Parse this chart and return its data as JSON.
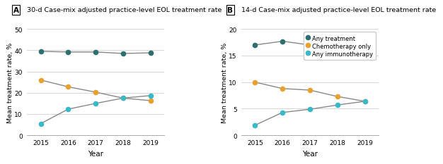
{
  "years": [
    2015,
    2016,
    2017,
    2018,
    2019
  ],
  "panel_A": {
    "title": "30-d Case-mix adjusted practice-level EOL treatment rate",
    "ylabel": "Mean treatment rate, %",
    "xlabel": "Year",
    "ylim": [
      0,
      50
    ],
    "yticks": [
      0,
      10,
      20,
      30,
      40,
      50
    ],
    "any_treatment": [
      39.5,
      39.2,
      39.2,
      38.5,
      38.8
    ],
    "chemo_only": [
      26.0,
      22.8,
      20.3,
      17.5,
      16.3
    ],
    "immunotherapy": [
      5.5,
      12.3,
      15.0,
      17.5,
      18.7
    ]
  },
  "panel_B": {
    "title": "14-d Case-mix adjusted practice-level EOL treatment rate",
    "ylabel": "Mean treatment rate, %",
    "xlabel": "Year",
    "ylim": [
      0,
      20
    ],
    "yticks": [
      0,
      5,
      10,
      15,
      20
    ],
    "any_treatment": [
      17.0,
      17.7,
      17.0,
      17.2,
      17.1
    ],
    "chemo_only": [
      10.0,
      8.8,
      8.5,
      7.3,
      6.4
    ],
    "immunotherapy": [
      1.9,
      4.3,
      4.9,
      5.7,
      6.4
    ]
  },
  "colors": {
    "any_treatment": "#2d6e6e",
    "chemo_only": "#e8a030",
    "immunotherapy": "#39b8c8"
  },
  "legend_labels": [
    "Any treatment",
    "Chemotherapy only",
    "Any immunotherapy"
  ],
  "markersize": 5.5,
  "linewidth": 1.0,
  "line_color": "#888888"
}
